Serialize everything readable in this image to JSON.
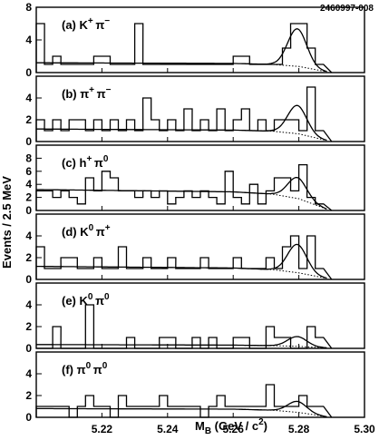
{
  "figure_id": "2460997-008",
  "chart_data": {
    "type": "histogram",
    "grid": false,
    "xlabel_parts": {
      "m": "M",
      "sub": "B",
      "unit": " (GeV / c",
      "sup": "2",
      "close": ")"
    },
    "ylabel": "Events / 2.5 MeV",
    "xlim": [
      5.2,
      5.3
    ],
    "x_ticks": [
      "5.22",
      "5.24",
      "5.26",
      "5.28",
      "5.30"
    ],
    "x_tick_values": [
      5.22,
      5.24,
      5.26,
      5.28,
      5.3
    ],
    "bin_width": 0.0025,
    "panels": [
      {
        "tag": "(a)",
        "label": [
          {
            "t": "K",
            "sup": "+"
          },
          {
            "t": "π",
            "sup": "−"
          }
        ],
        "ylim": [
          0,
          8
        ],
        "y_ticks": [
          0,
          4,
          8
        ],
        "bin_edges": [
          5.2,
          5.2025,
          5.205,
          5.2075,
          5.21,
          5.2125,
          5.215,
          5.2175,
          5.22,
          5.2225,
          5.225,
          5.2275,
          5.23,
          5.2325,
          5.235,
          5.2375,
          5.24,
          5.2425,
          5.245,
          5.2475,
          5.25,
          5.2525,
          5.255,
          5.2575,
          5.26,
          5.2625,
          5.265,
          5.2675,
          5.27,
          5.2725,
          5.275,
          5.2775,
          5.28,
          5.2825,
          5.285,
          5.2875
        ],
        "counts": [
          6,
          1,
          2,
          1,
          1,
          1,
          1,
          2,
          2,
          1,
          1,
          1,
          6,
          1,
          1,
          1,
          1,
          1,
          1,
          1,
          1,
          1,
          1,
          1,
          2,
          2,
          1,
          1,
          1,
          1,
          3,
          6,
          6,
          3,
          1
        ],
        "signal_peak": 4.6,
        "background": [
          [
            5.2,
            1.2
          ],
          [
            5.26,
            1.12
          ],
          [
            5.272,
            1.0
          ],
          [
            5.28,
            0.75
          ],
          [
            5.2885,
            0.1
          ]
        ]
      },
      {
        "tag": "(b)",
        "label": [
          {
            "t": "π",
            "sup": "+"
          },
          {
            "t": "π",
            "sup": "−"
          }
        ],
        "ylim": [
          0,
          6
        ],
        "y_ticks": [
          0,
          2,
          4
        ],
        "bin_edges": [
          5.2,
          5.2025,
          5.205,
          5.2075,
          5.21,
          5.2125,
          5.215,
          5.2175,
          5.22,
          5.2225,
          5.225,
          5.2275,
          5.23,
          5.2325,
          5.235,
          5.2375,
          5.24,
          5.2425,
          5.245,
          5.2475,
          5.25,
          5.2525,
          5.255,
          5.2575,
          5.26,
          5.2625,
          5.265,
          5.2675,
          5.27,
          5.2725,
          5.275,
          5.2775,
          5.28,
          5.2825,
          5.285,
          5.2875
        ],
        "counts": [
          2,
          1,
          2,
          1,
          2,
          2,
          1,
          2,
          1,
          2,
          1,
          2,
          1,
          4,
          2,
          1,
          2,
          1,
          3,
          1,
          2,
          1,
          3,
          1,
          2,
          3,
          1,
          2,
          1,
          2,
          2,
          2,
          1,
          5,
          1
        ],
        "signal_peak": 2.6,
        "background": [
          [
            5.2,
            1.15
          ],
          [
            5.26,
            1.05
          ],
          [
            5.272,
            0.95
          ],
          [
            5.28,
            0.7
          ],
          [
            5.2885,
            0.1
          ]
        ]
      },
      {
        "tag": "(c)",
        "label": [
          {
            "t": "h",
            "sup": "+"
          },
          {
            "t": "π",
            "sup": "0"
          }
        ],
        "ylim": [
          0,
          10
        ],
        "y_ticks": [
          0,
          2,
          4,
          6,
          8
        ],
        "bin_edges": [
          5.2,
          5.2025,
          5.205,
          5.2075,
          5.21,
          5.2125,
          5.215,
          5.2175,
          5.22,
          5.2225,
          5.225,
          5.2275,
          5.23,
          5.2325,
          5.235,
          5.2375,
          5.24,
          5.2425,
          5.245,
          5.2475,
          5.25,
          5.2525,
          5.255,
          5.2575,
          5.26,
          5.2625,
          5.265,
          5.2675,
          5.27,
          5.2725,
          5.275,
          5.2775,
          5.28,
          5.2825,
          5.285,
          5.2875
        ],
        "counts": [
          3,
          3,
          2,
          3,
          2,
          1,
          5,
          3,
          6,
          5,
          3,
          3,
          2,
          3,
          2,
          3,
          1,
          2,
          3,
          2,
          3,
          2,
          1,
          6,
          2,
          1,
          4,
          1,
          3,
          5,
          5,
          3,
          7,
          2,
          1
        ],
        "signal_peak": 3.2,
        "background": [
          [
            5.2,
            3.2
          ],
          [
            5.26,
            2.85
          ],
          [
            5.272,
            2.5
          ],
          [
            5.28,
            1.8
          ],
          [
            5.2885,
            0.2
          ]
        ]
      },
      {
        "tag": "(d)",
        "label": [
          {
            "t": "K",
            "sup": "0"
          },
          {
            "t": "π",
            "sup": "+"
          }
        ],
        "ylim": [
          0,
          6
        ],
        "y_ticks": [
          0,
          2,
          4
        ],
        "bin_edges": [
          5.2,
          5.2025,
          5.205,
          5.2075,
          5.21,
          5.2125,
          5.215,
          5.2175,
          5.22,
          5.2225,
          5.225,
          5.2275,
          5.23,
          5.2325,
          5.235,
          5.2375,
          5.24,
          5.2425,
          5.245,
          5.2475,
          5.25,
          5.2525,
          5.255,
          5.2575,
          5.26,
          5.2625,
          5.265,
          5.2675,
          5.27,
          5.2725,
          5.275,
          5.2775,
          5.28,
          5.2825,
          5.285,
          5.2875
        ],
        "counts": [
          3,
          1,
          1,
          2,
          2,
          1,
          1,
          2,
          1,
          1,
          3,
          1,
          1,
          2,
          1,
          1,
          2,
          1,
          1,
          1,
          2,
          1,
          1,
          1,
          2,
          1,
          1,
          1,
          2,
          1,
          3,
          4,
          1,
          4,
          1
        ],
        "signal_peak": 2.6,
        "background": [
          [
            5.2,
            1.2
          ],
          [
            5.26,
            1.05
          ],
          [
            5.272,
            0.9
          ],
          [
            5.28,
            0.6
          ],
          [
            5.2885,
            0.1
          ]
        ]
      },
      {
        "tag": "(e)",
        "label": [
          {
            "t": "K",
            "sup": "0"
          },
          {
            "t": "π",
            "sup": "0"
          }
        ],
        "ylim": [
          0,
          6
        ],
        "y_ticks": [
          0,
          2,
          4
        ],
        "bin_edges": [
          5.2,
          5.2025,
          5.205,
          5.2075,
          5.21,
          5.2125,
          5.215,
          5.2175,
          5.22,
          5.2225,
          5.225,
          5.2275,
          5.23,
          5.2325,
          5.235,
          5.2375,
          5.24,
          5.2425,
          5.245,
          5.2475,
          5.25,
          5.2525,
          5.255,
          5.2575,
          5.26,
          5.2625,
          5.265,
          5.2675,
          5.27,
          5.2725,
          5.275,
          5.2775,
          5.28,
          5.2825,
          5.285,
          5.2875
        ],
        "counts": [
          0,
          0,
          2,
          0,
          0,
          0,
          4,
          0,
          0,
          0,
          0,
          1,
          0,
          0,
          0,
          1,
          1,
          0,
          0,
          1,
          0,
          1,
          0,
          0,
          1,
          1,
          0,
          0,
          2,
          1,
          1,
          0,
          0,
          2,
          1
        ],
        "signal_peak": 0.9,
        "background": [
          [
            5.2,
            0.35
          ],
          [
            5.26,
            0.3
          ],
          [
            5.272,
            0.25
          ],
          [
            5.28,
            0.18
          ],
          [
            5.2885,
            0.05
          ]
        ]
      },
      {
        "tag": "(f)",
        "label": [
          {
            "t": "π",
            "sup": "0"
          },
          {
            "t": "π",
            "sup": "0"
          }
        ],
        "ylim": [
          0,
          6
        ],
        "y_ticks": [
          0,
          2,
          4
        ],
        "bin_edges": [
          5.2,
          5.2025,
          5.205,
          5.2075,
          5.21,
          5.2125,
          5.215,
          5.2175,
          5.22,
          5.2225,
          5.225,
          5.2275,
          5.23,
          5.2325,
          5.235,
          5.2375,
          5.24,
          5.2425,
          5.245,
          5.2475,
          5.25,
          5.2525,
          5.255,
          5.2575,
          5.26,
          5.2625,
          5.265,
          5.2675,
          5.27,
          5.2725,
          5.275,
          5.2775,
          5.28,
          5.2825,
          5.285,
          5.2875
        ],
        "counts": [
          1,
          1,
          1,
          1,
          0,
          1,
          2,
          1,
          1,
          0,
          2,
          1,
          1,
          1,
          1,
          2,
          1,
          1,
          1,
          1,
          0,
          1,
          2,
          1,
          1,
          1,
          1,
          1,
          3,
          1,
          1,
          1,
          2,
          1,
          1
        ],
        "signal_peak": 1.0,
        "background": [
          [
            5.2,
            0.8
          ],
          [
            5.26,
            0.75
          ],
          [
            5.272,
            0.65
          ],
          [
            5.28,
            0.45
          ],
          [
            5.2885,
            0.05
          ]
        ]
      }
    ]
  }
}
